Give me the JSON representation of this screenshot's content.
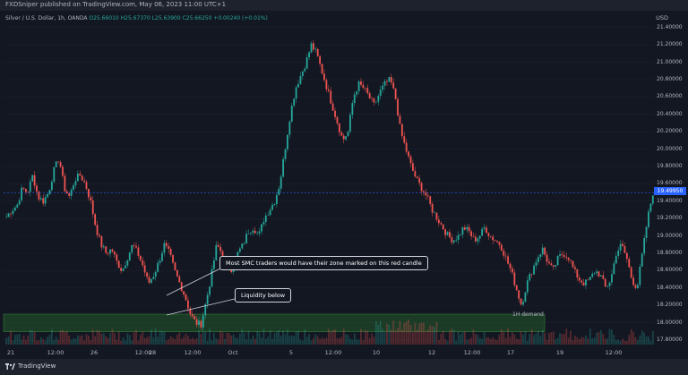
{
  "header": {
    "published": "FXDSniper published on TradingView.com, May 06, 2023 11:00 UTC+1",
    "symbol": "Silver / U.S. Dollar, 1h, OANDA",
    "ohlc": "O25.66010 H25.67370 L25.63900 C25.66250 +0.00240 (+0.01%)",
    "currency": "USD"
  },
  "footer": {
    "brand": "TradingView",
    "logo_icon": "tradingview-logo-icon"
  },
  "y_axis": {
    "labels": [
      "21.40000",
      "21.20000",
      "21.00000",
      "20.80000",
      "20.60000",
      "20.40000",
      "20.20000",
      "20.00000",
      "19.80000",
      "19.60000",
      "19.40000",
      "19.20000",
      "19.00000",
      "18.80000",
      "18.60000",
      "18.40000",
      "18.20000",
      "18.00000",
      "17.80000"
    ],
    "current_price": "19.49950"
  },
  "x_axis": {
    "labels": [
      "21",
      "12:00",
      "26",
      "12:00",
      "28",
      "12:00",
      "Oct",
      "5",
      "12:00",
      "10",
      "12",
      "12:00",
      "17",
      "19",
      "12:00"
    ]
  },
  "annotations": {
    "smc_note": "Most SMC traders would have their zone marked on this red candle",
    "liquidity_note": "Liquidity below",
    "demand_zone": "1H demand"
  },
  "colors": {
    "up": "#26a69a",
    "down": "#ef5350",
    "background": "#131722",
    "zone": "#2e7d32"
  },
  "chart_data": {
    "type": "candlestick",
    "price_path": [
      19.22,
      19.3,
      19.35,
      19.55,
      19.5,
      19.7,
      19.45,
      19.4,
      19.5,
      19.75,
      19.9,
      19.55,
      19.45,
      19.65,
      19.7,
      19.6,
      19.4,
      19.1,
      18.9,
      18.8,
      18.85,
      18.7,
      18.6,
      18.75,
      18.9,
      18.8,
      18.65,
      18.45,
      18.55,
      18.7,
      18.9,
      18.8,
      18.6,
      18.45,
      18.3,
      18.1,
      18.0,
      17.98,
      18.25,
      18.55,
      18.9,
      18.8,
      18.7,
      18.6,
      18.8,
      18.9,
      19.05,
      19.1,
      19.0,
      19.2,
      19.3,
      19.4,
      19.6,
      20.0,
      20.4,
      20.7,
      20.85,
      21.0,
      21.2,
      21.1,
      20.9,
      20.7,
      20.5,
      20.3,
      20.1,
      20.2,
      20.6,
      20.75,
      20.7,
      20.6,
      20.5,
      20.65,
      20.75,
      20.8,
      20.6,
      20.2,
      20.0,
      19.8,
      19.65,
      19.55,
      19.45,
      19.3,
      19.2,
      19.1,
      19.0,
      18.95,
      19.0,
      19.1,
      19.05,
      18.95,
      19.0,
      19.1,
      19.0,
      18.95,
      18.9,
      18.75,
      18.6,
      18.4,
      18.2,
      18.45,
      18.6,
      18.75,
      18.85,
      18.7,
      18.6,
      18.75,
      18.8,
      18.75,
      18.6,
      18.5,
      18.45,
      18.5,
      18.6,
      18.55,
      18.4,
      18.5,
      18.8,
      18.9,
      18.75,
      18.5,
      18.4,
      18.8,
      19.2,
      19.5
    ],
    "demand_zone": [
      17.98,
      18.1
    ],
    "ylim": [
      17.75,
      21.5
    ]
  }
}
